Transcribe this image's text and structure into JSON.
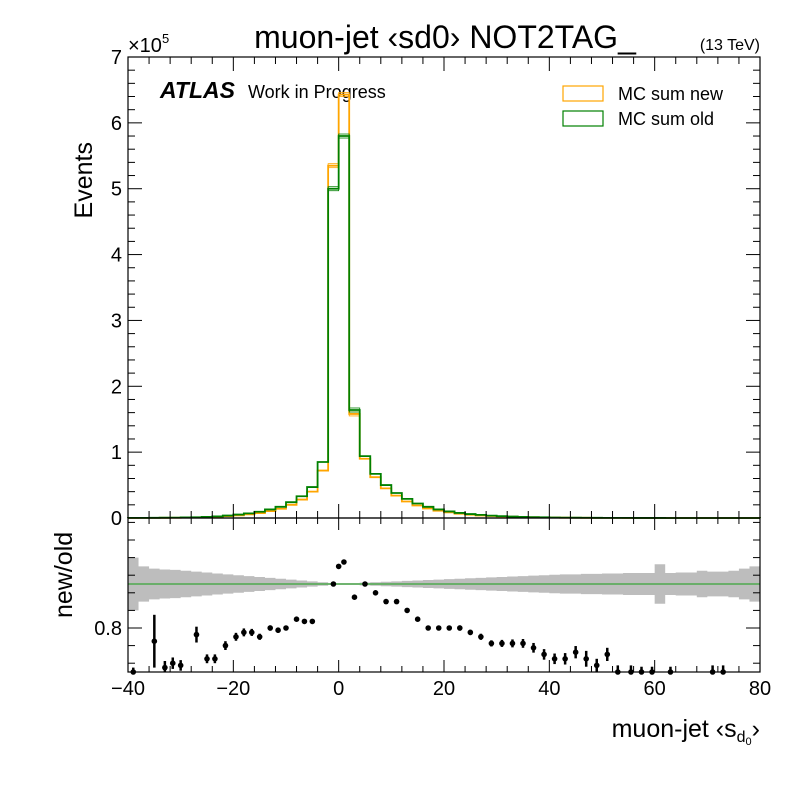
{
  "chart_data": [
    {
      "type": "line",
      "title": "muon-jet ‹sd0› NOT2TAG_",
      "energy_label": "(13 TeV)",
      "experiment": "ATLAS",
      "status": "Work in Progress",
      "ylabel": "Events",
      "y_exponent": "×10",
      "y_exponent_power": "5",
      "xlim": [
        -40,
        80
      ],
      "ylim": [
        0,
        700000
      ],
      "y_ticks": [
        0,
        100000,
        200000,
        300000,
        400000,
        500000,
        600000,
        700000
      ],
      "y_tick_labels": [
        "0",
        "1",
        "2",
        "3",
        "4",
        "5",
        "6",
        "7"
      ],
      "legend_position": "top-right",
      "legend": [
        "MC sum new",
        "MC sum old"
      ],
      "colors": {
        "new": "#ffa500",
        "old": "#008000"
      },
      "bin_edges": [
        -40,
        -38,
        -36,
        -34,
        -32,
        -30,
        -28,
        -26,
        -24,
        -22,
        -20,
        -18,
        -16,
        -14,
        -12,
        -10,
        -8,
        -6,
        -4,
        -2,
        0,
        2,
        4,
        6,
        8,
        10,
        12,
        14,
        16,
        18,
        20,
        22,
        24,
        26,
        28,
        30,
        32,
        34,
        36,
        38,
        40,
        42,
        44,
        46,
        48,
        50,
        52,
        54,
        56,
        58,
        60,
        62,
        64,
        66,
        68,
        70,
        72,
        74,
        76,
        78,
        80
      ],
      "series": [
        {
          "name": "MC sum new",
          "color": "#ffa500",
          "values": [
            100,
            150,
            200,
            300,
            400,
            600,
            800,
            1200,
            1800,
            2800,
            4000,
            5500,
            7500,
            10500,
            14000,
            20000,
            28000,
            40000,
            72000,
            535000,
            643000,
            158000,
            90000,
            62000,
            45000,
            34000,
            25000,
            19000,
            14500,
            11000,
            8500,
            6500,
            5000,
            3900,
            3000,
            2300,
            1800,
            1400,
            1100,
            850,
            650,
            500,
            400,
            310,
            240,
            190,
            150,
            120,
            95,
            75,
            60,
            48,
            38,
            30,
            24,
            19,
            15,
            12,
            9,
            7
          ]
        },
        {
          "name": "MC sum old",
          "color": "#008000",
          "values": [
            150,
            200,
            300,
            450,
            600,
            850,
            1150,
            1700,
            2500,
            3700,
            5200,
            7000,
            9500,
            13000,
            17000,
            24000,
            33000,
            47000,
            85000,
            500000,
            580000,
            164000,
            94000,
            67000,
            50000,
            38000,
            29000,
            22000,
            17000,
            13000,
            10000,
            7700,
            6000,
            4700,
            3600,
            2800,
            2200,
            1700,
            1350,
            1050,
            800,
            620,
            480,
            370,
            290,
            225,
            175,
            140,
            110,
            88,
            70,
            55,
            44,
            35,
            28,
            22,
            17,
            14,
            11,
            8
          ]
        }
      ]
    },
    {
      "type": "scatter",
      "ylabel": "new/old",
      "xlabel": "muon-jet ‹s",
      "xlabel_sub": "d",
      "xlabel_subsub": "0",
      "xlabel_end": "›",
      "xlim": [
        -40,
        80
      ],
      "ylim": [
        0.7,
        1.05
      ],
      "x_ticks": [
        -40,
        -20,
        0,
        20,
        40,
        60,
        80
      ],
      "x_tick_labels": [
        "−40",
        "−20",
        "0",
        "20",
        "40",
        "60",
        "80"
      ],
      "y_ticks": [
        0.8
      ],
      "y_tick_labels": [
        "0.8"
      ],
      "reference_line": 0.9,
      "band_half_width": [
        0.06,
        0.04,
        0.035,
        0.033,
        0.032,
        0.03,
        0.028,
        0.026,
        0.024,
        0.022,
        0.02,
        0.018,
        0.016,
        0.014,
        0.012,
        0.01,
        0.008,
        0.006,
        0.004,
        0.002,
        0.002,
        0.002,
        0.003,
        0.004,
        0.005,
        0.006,
        0.007,
        0.008,
        0.009,
        0.01,
        0.011,
        0.012,
        0.013,
        0.014,
        0.015,
        0.016,
        0.017,
        0.018,
        0.019,
        0.02,
        0.021,
        0.022,
        0.022,
        0.023,
        0.023,
        0.024,
        0.024,
        0.025,
        0.025,
        0.025,
        0.045,
        0.025,
        0.026,
        0.026,
        0.03,
        0.028,
        0.028,
        0.03,
        0.035,
        0.04
      ],
      "points": [
        {
          "x": -39,
          "y": 0.7,
          "err": 0.01
        },
        {
          "x": -35,
          "y": 0.77,
          "err": 0.06
        },
        {
          "x": -33,
          "y": 0.71,
          "err": 0.015
        },
        {
          "x": -31.5,
          "y": 0.72,
          "err": 0.013
        },
        {
          "x": -30,
          "y": 0.715,
          "err": 0.012
        },
        {
          "x": -27,
          "y": 0.785,
          "err": 0.018
        },
        {
          "x": -25,
          "y": 0.73,
          "err": 0.01
        },
        {
          "x": -23.5,
          "y": 0.73,
          "err": 0.01
        },
        {
          "x": -21.5,
          "y": 0.76,
          "err": 0.01
        },
        {
          "x": -19.5,
          "y": 0.78,
          "err": 0.009
        },
        {
          "x": -18,
          "y": 0.79,
          "err": 0.009
        },
        {
          "x": -16.5,
          "y": 0.79,
          "err": 0.008
        },
        {
          "x": -15,
          "y": 0.78,
          "err": 0.007
        },
        {
          "x": -13,
          "y": 0.8,
          "err": 0.006
        },
        {
          "x": -11.5,
          "y": 0.795,
          "err": 0.006
        },
        {
          "x": -10,
          "y": 0.8,
          "err": 0.005
        },
        {
          "x": -8,
          "y": 0.82,
          "err": 0.004
        },
        {
          "x": -6.5,
          "y": 0.815,
          "err": 0.004
        },
        {
          "x": -5,
          "y": 0.815,
          "err": 0.003
        },
        {
          "x": -1,
          "y": 0.9,
          "err": 0.002
        },
        {
          "x": 0,
          "y": 0.94,
          "err": 0.002
        },
        {
          "x": 1,
          "y": 0.95,
          "err": 0.002
        },
        {
          "x": 3,
          "y": 0.87,
          "err": 0.002
        },
        {
          "x": 5,
          "y": 0.9,
          "err": 0.003
        },
        {
          "x": 7,
          "y": 0.88,
          "err": 0.003
        },
        {
          "x": 9,
          "y": 0.86,
          "err": 0.003
        },
        {
          "x": 11,
          "y": 0.86,
          "err": 0.004
        },
        {
          "x": 13,
          "y": 0.84,
          "err": 0.004
        },
        {
          "x": 15,
          "y": 0.82,
          "err": 0.004
        },
        {
          "x": 17,
          "y": 0.8,
          "err": 0.005
        },
        {
          "x": 19,
          "y": 0.8,
          "err": 0.005
        },
        {
          "x": 21,
          "y": 0.8,
          "err": 0.005
        },
        {
          "x": 23,
          "y": 0.8,
          "err": 0.006
        },
        {
          "x": 25,
          "y": 0.79,
          "err": 0.006
        },
        {
          "x": 27,
          "y": 0.78,
          "err": 0.007
        },
        {
          "x": 29,
          "y": 0.765,
          "err": 0.007
        },
        {
          "x": 31,
          "y": 0.765,
          "err": 0.008
        },
        {
          "x": 33,
          "y": 0.765,
          "err": 0.009
        },
        {
          "x": 35,
          "y": 0.765,
          "err": 0.01
        },
        {
          "x": 37,
          "y": 0.755,
          "err": 0.011
        },
        {
          "x": 39,
          "y": 0.74,
          "err": 0.012
        },
        {
          "x": 41,
          "y": 0.73,
          "err": 0.012
        },
        {
          "x": 43,
          "y": 0.73,
          "err": 0.013
        },
        {
          "x": 45,
          "y": 0.745,
          "err": 0.014
        },
        {
          "x": 47,
          "y": 0.73,
          "err": 0.018
        },
        {
          "x": 49,
          "y": 0.715,
          "err": 0.015
        },
        {
          "x": 51,
          "y": 0.74,
          "err": 0.015
        },
        {
          "x": 53,
          "y": 0.7,
          "err": 0.015
        },
        {
          "x": 55.5,
          "y": 0.7,
          "err": 0.015
        },
        {
          "x": 57.5,
          "y": 0.7,
          "err": 0.012
        },
        {
          "x": 59.5,
          "y": 0.7,
          "err": 0.012
        },
        {
          "x": 63,
          "y": 0.7,
          "err": 0.012
        },
        {
          "x": 71,
          "y": 0.7,
          "err": 0.015
        },
        {
          "x": 73,
          "y": 0.7,
          "err": 0.015
        }
      ]
    }
  ]
}
